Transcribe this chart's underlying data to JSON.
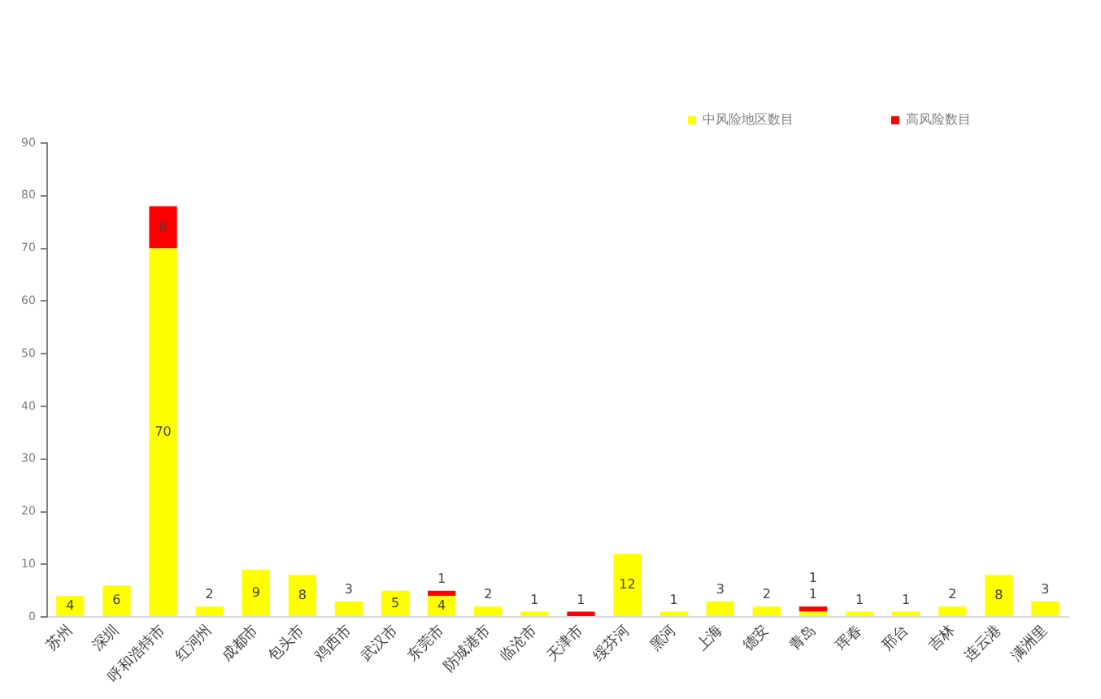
{
  "chart_data": {
    "type": "bar",
    "stacked": true,
    "categories": [
      "苏州",
      "深圳",
      "呼和浩特市",
      "红河州",
      "成都市",
      "包头市",
      "鸡西市",
      "武汉市",
      "东莞市",
      "防城港市",
      "临沧市",
      "天津市",
      "绥芬河",
      "黑河",
      "上海",
      "德安",
      "青岛",
      "珲春",
      "邢台",
      "吉林",
      "连云港",
      "满洲里"
    ],
    "series": [
      {
        "name": "中风险地区数目",
        "color": "#ffff00",
        "values": [
          4,
          6,
          70,
          2,
          9,
          8,
          3,
          5,
          4,
          2,
          1,
          0,
          12,
          1,
          3,
          2,
          1,
          1,
          1,
          2,
          8,
          3
        ],
        "value_labels": [
          "4",
          "6",
          "70",
          "2",
          "9",
          "8",
          "3",
          "5",
          "4",
          "2",
          "1",
          null,
          "12",
          "1",
          "3",
          "2",
          "1",
          "1",
          "1",
          "2",
          "8",
          "3"
        ]
      },
      {
        "name": "高风险数目",
        "color": "#ff0000",
        "values": [
          0,
          0,
          8,
          0,
          0,
          0,
          0,
          0,
          1,
          0,
          0,
          1,
          0,
          0,
          0,
          0,
          1,
          0,
          0,
          0,
          0,
          0
        ],
        "value_labels": [
          null,
          null,
          "8",
          null,
          null,
          null,
          null,
          null,
          "1",
          null,
          null,
          "1",
          null,
          null,
          null,
          null,
          "1",
          null,
          null,
          null,
          null,
          null
        ]
      }
    ],
    "ylim": [
      0,
      90
    ],
    "yticks": [
      0,
      10,
      20,
      30,
      40,
      50,
      60,
      70,
      80,
      90
    ],
    "grid": false,
    "legend": "top right"
  }
}
